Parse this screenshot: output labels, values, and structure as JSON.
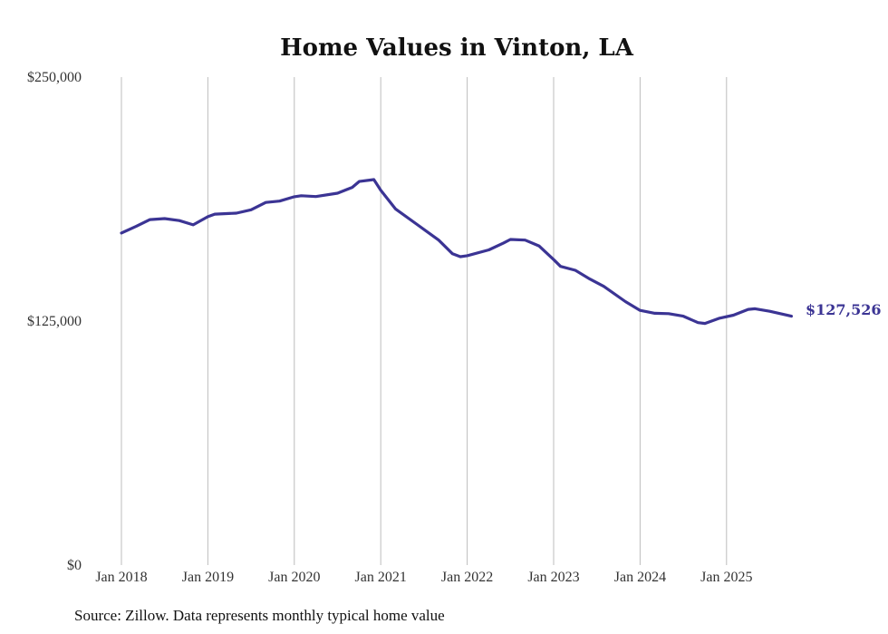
{
  "chart_data": {
    "type": "line",
    "title": "Home Values in Vinton, LA",
    "xlabel": "",
    "ylabel": "",
    "ylim": [
      0,
      250000
    ],
    "xlim": [
      2018.0,
      2025.75
    ],
    "y_ticks": [
      {
        "value": 0,
        "label": "$0"
      },
      {
        "value": 125000,
        "label": "$125,000"
      },
      {
        "value": 250000,
        "label": "$250,000"
      }
    ],
    "x_ticks": [
      {
        "value": 2018,
        "label": "Jan 2018"
      },
      {
        "value": 2019,
        "label": "Jan 2019"
      },
      {
        "value": 2020,
        "label": "Jan 2020"
      },
      {
        "value": 2021,
        "label": "Jan 2021"
      },
      {
        "value": 2022,
        "label": "Jan 2022"
      },
      {
        "value": 2023,
        "label": "Jan 2023"
      },
      {
        "value": 2024,
        "label": "Jan 2024"
      },
      {
        "value": 2025,
        "label": "Jan 2025"
      }
    ],
    "grid": "vertical",
    "line_color": "#3b3494",
    "series": [
      {
        "name": "Typical home value",
        "x": [
          2018.0,
          2018.17,
          2018.33,
          2018.5,
          2018.67,
          2018.83,
          2019.0,
          2019.08,
          2019.33,
          2019.5,
          2019.67,
          2019.83,
          2020.0,
          2020.08,
          2020.25,
          2020.5,
          2020.67,
          2020.75,
          2020.92,
          2021.0,
          2021.17,
          2021.42,
          2021.67,
          2021.83,
          2021.92,
          2022.0,
          2022.25,
          2022.42,
          2022.5,
          2022.67,
          2022.83,
          2023.0,
          2023.08,
          2023.25,
          2023.42,
          2023.58,
          2023.83,
          2024.0,
          2024.17,
          2024.33,
          2024.5,
          2024.67,
          2024.75,
          2024.92,
          2025.08,
          2025.25,
          2025.33,
          2025.5,
          2025.75
        ],
        "values": [
          170100,
          173500,
          177000,
          177500,
          176500,
          174300,
          178500,
          179800,
          180300,
          182000,
          185800,
          186500,
          188700,
          189200,
          188800,
          190500,
          193500,
          196500,
          197500,
          192000,
          182500,
          174500,
          166500,
          159500,
          158000,
          158500,
          161500,
          165000,
          166800,
          166500,
          163500,
          156500,
          153000,
          151000,
          146500,
          142800,
          135000,
          130500,
          129000,
          128800,
          127500,
          124200,
          123800,
          126500,
          128000,
          131000,
          131300,
          130000,
          127526
        ]
      }
    ],
    "end_label": "$127,526",
    "source": "Source: Zillow. Data represents monthly typical home value"
  }
}
